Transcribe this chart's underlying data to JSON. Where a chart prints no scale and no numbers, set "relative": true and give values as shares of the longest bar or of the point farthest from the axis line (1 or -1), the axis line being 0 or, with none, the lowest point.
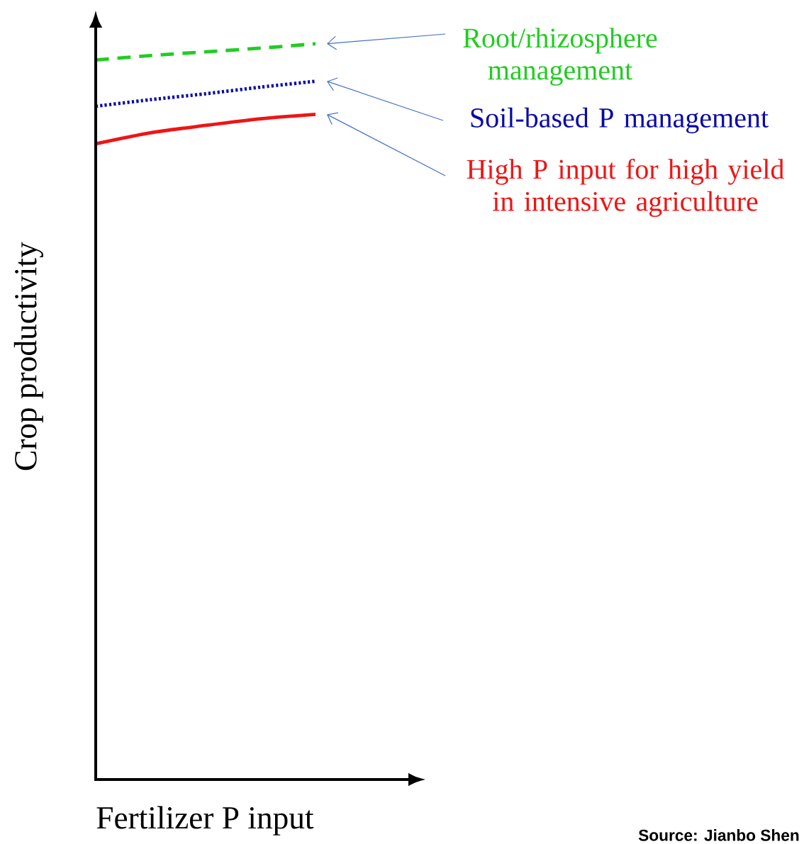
{
  "chart_data": {
    "type": "line",
    "relative": true,
    "xlabel": "Fertilizer P input",
    "ylabel": "Crop productivity",
    "categories": [
      null,
      null,
      null,
      null,
      null,
      null,
      null
    ],
    "series": [
      {
        "name": "Root/rhizosphere management",
        "color": "#22cc22",
        "line_style": "dashed",
        "values": [
          0.978,
          0.984,
          0.989,
          0.994,
          1,
          null,
          null
        ]
      },
      {
        "name": "Soil-based P management",
        "color": "#0a0aa8",
        "line_style": "dotted",
        "values": [
          0.915,
          0.924,
          0.932,
          0.941,
          0.949,
          null,
          null
        ]
      },
      {
        "name": "High P input for high yield in intensive agriculture",
        "color": "#ee1515",
        "line_style": "solid",
        "values": [
          0.864,
          0.879,
          0.889,
          0.898,
          0.904,
          null,
          null
        ]
      }
    ],
    "annotations": [
      "Source:  Jianbo Shen"
    ]
  }
}
